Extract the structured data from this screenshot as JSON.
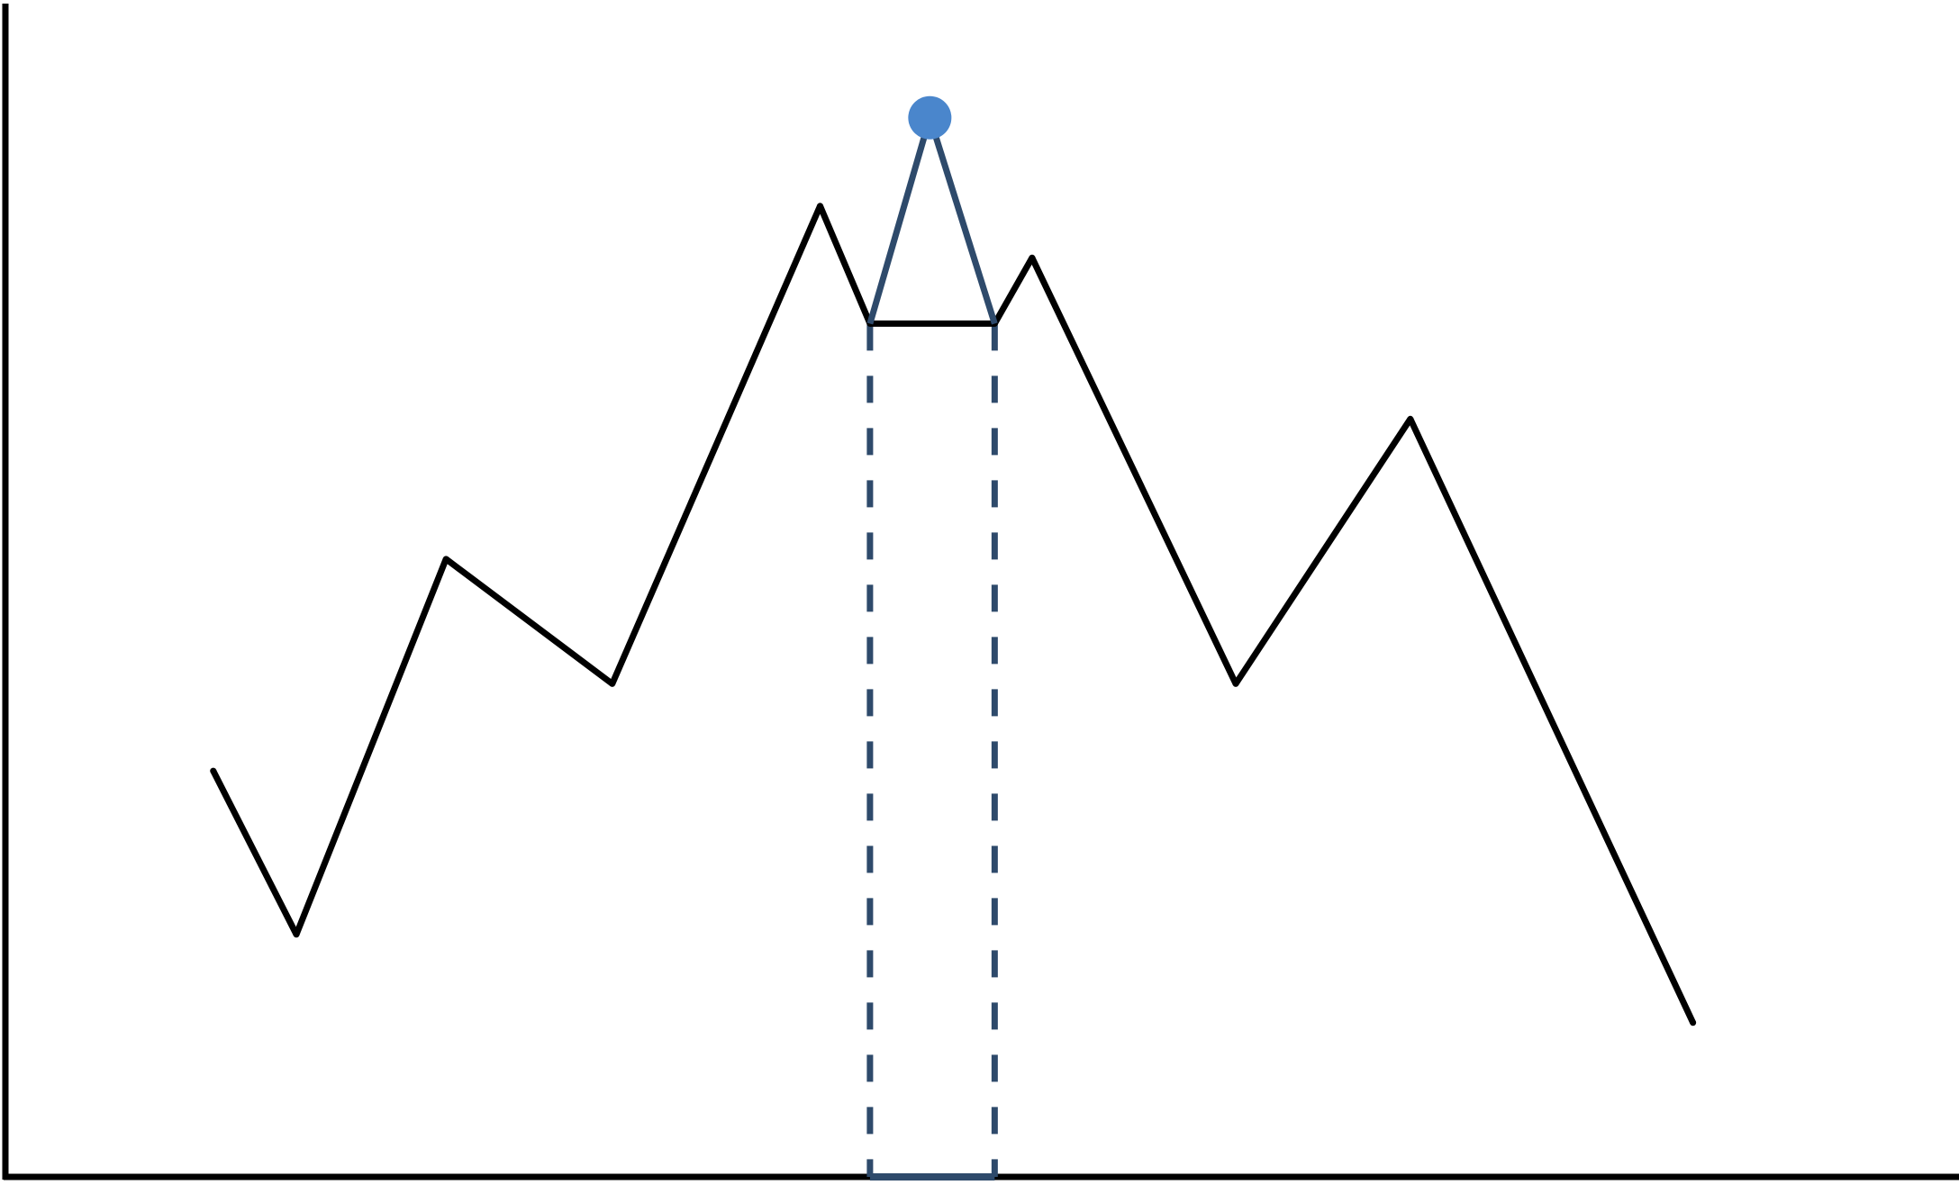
{
  "colors": {
    "background": "#ffffff",
    "axis": "#000000",
    "line": "#000000",
    "highlight_segment": "#2e4a6b",
    "highlight_marker": "#4a86cc"
  },
  "chart_data": {
    "type": "line",
    "title": "",
    "xlabel": "",
    "ylabel": "",
    "grid": false,
    "axes_ticks_labels": false,
    "xlim": [
      0,
      23.5
    ],
    "ylim": [
      0,
      100
    ],
    "series": [
      {
        "values": [
          {
            "x": 2.5,
            "y": 34.5
          },
          {
            "x": 3.5,
            "y": 20.6
          },
          {
            "x": 5.3,
            "y": 52.5
          },
          {
            "x": 7.3,
            "y": 41.9
          },
          {
            "x": 9.8,
            "y": 82.5
          },
          {
            "x": 10.4,
            "y": 72.5
          },
          {
            "x": 11.9,
            "y": 72.5
          },
          {
            "x": 12.35,
            "y": 78.1
          },
          {
            "x": 14.8,
            "y": 41.9
          },
          {
            "x": 16.9,
            "y": 64.4
          },
          {
            "x": 20.3,
            "y": 13.1
          }
        ]
      }
    ],
    "highlight": {
      "x_range": [
        10.4,
        11.9
      ],
      "peak": {
        "x": 11.12,
        "y": 90.0
      },
      "range_lines_dashed": true,
      "range_marked_on_x_axis": true
    }
  }
}
